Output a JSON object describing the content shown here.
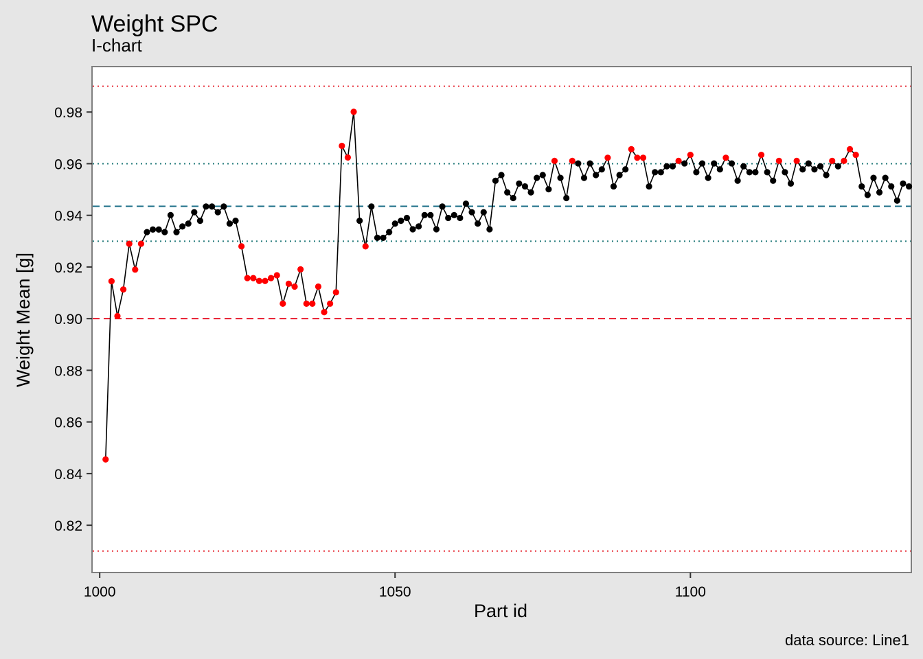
{
  "chart_data": {
    "type": "line",
    "title": "Weight SPC",
    "subtitle": "I-chart",
    "xlabel": "Part id",
    "ylabel": "Weight Mean [g]",
    "caption": "data source: Line1",
    "xlim": [
      998.7,
      1137.4
    ],
    "ylim": [
      0.8017,
      0.9976
    ],
    "x_ticks": [
      1000,
      1050,
      1100
    ],
    "x_tick_labels": [
      "1000",
      "1050",
      "1100"
    ],
    "y_ticks": [
      0.82,
      0.84,
      0.86,
      0.88,
      0.9,
      0.92,
      0.94,
      0.96,
      0.98
    ],
    "y_tick_labels": [
      "0.82",
      "0.84",
      "0.86",
      "0.88",
      "0.90",
      "0.92",
      "0.94",
      "0.96",
      "0.98"
    ],
    "grid": false,
    "reference_lines": [
      {
        "value": 0.99,
        "style": "dotted",
        "color": "#e8323c"
      },
      {
        "value": 0.96,
        "style": "dotted",
        "color": "#227a7a"
      },
      {
        "value": 0.9435,
        "style": "dashed",
        "color": "#1a6e87"
      },
      {
        "value": 0.93,
        "style": "dotted",
        "color": "#227a7a"
      },
      {
        "value": 0.9,
        "style": "dashed",
        "color": "#e8192c"
      },
      {
        "value": 0.81,
        "style": "dotted",
        "color": "#e8323c"
      }
    ],
    "colors": {
      "line": "#000000",
      "normal": "#000000",
      "flagged": "#ff0000"
    },
    "series": [
      {
        "x_start": 1001,
        "values": [
          0.8455,
          0.9145,
          0.901,
          0.9113,
          0.929,
          0.919,
          0.929,
          0.9335,
          0.9345,
          0.9345,
          0.9335,
          0.9401,
          0.9335,
          0.9357,
          0.9368,
          0.9412,
          0.9379,
          0.9434,
          0.9434,
          0.9412,
          0.9434,
          0.9368,
          0.9379,
          0.928,
          0.9157,
          0.9157,
          0.9146,
          0.9146,
          0.9157,
          0.9168,
          0.9058,
          0.9135,
          0.9124,
          0.9191,
          0.9058,
          0.9058,
          0.9124,
          0.9025,
          0.9058,
          0.9102,
          0.9669,
          0.9624,
          0.9801,
          0.9379,
          0.928,
          0.9434,
          0.9313,
          0.9313,
          0.9335,
          0.9368,
          0.9379,
          0.939,
          0.9346,
          0.9357,
          0.9401,
          0.9401,
          0.9346,
          0.9434,
          0.939,
          0.9401,
          0.939,
          0.9445,
          0.9412,
          0.9368,
          0.9412,
          0.9346,
          0.9534,
          0.9556,
          0.9489,
          0.9467,
          0.9523,
          0.9512,
          0.9489,
          0.9545,
          0.9556,
          0.9501,
          0.9611,
          0.9545,
          0.9467,
          0.9611,
          0.9601,
          0.9545,
          0.9601,
          0.9556,
          0.9578,
          0.9623,
          0.9512,
          0.9556,
          0.9578,
          0.9656,
          0.9623,
          0.9623,
          0.9512,
          0.9567,
          0.9567,
          0.959,
          0.959,
          0.9611,
          0.9601,
          0.9634,
          0.9567,
          0.9601,
          0.9545,
          0.9601,
          0.9578,
          0.9623,
          0.9601,
          0.9534,
          0.959,
          0.9567,
          0.9567,
          0.9634,
          0.9567,
          0.9534,
          0.9611,
          0.9567,
          0.9523,
          0.9611,
          0.9578,
          0.9601,
          0.9578,
          0.959,
          0.9556,
          0.9611,
          0.959,
          0.9611,
          0.9656,
          0.9634,
          0.9512,
          0.9479,
          0.9545,
          0.9489,
          0.9545,
          0.9512,
          0.9457,
          0.9523,
          0.9512
        ],
        "flags": [
          1,
          1,
          1,
          1,
          1,
          1,
          1,
          0,
          0,
          0,
          0,
          0,
          0,
          0,
          0,
          0,
          0,
          0,
          0,
          0,
          0,
          0,
          0,
          1,
          1,
          1,
          1,
          1,
          1,
          1,
          1,
          1,
          1,
          1,
          1,
          1,
          1,
          1,
          1,
          1,
          1,
          1,
          1,
          0,
          1,
          0,
          0,
          0,
          0,
          0,
          0,
          0,
          0,
          0,
          0,
          0,
          0,
          0,
          0,
          0,
          0,
          0,
          0,
          0,
          0,
          0,
          0,
          0,
          0,
          0,
          0,
          0,
          0,
          0,
          0,
          0,
          1,
          0,
          0,
          1,
          0,
          0,
          0,
          0,
          0,
          1,
          0,
          0,
          0,
          1,
          1,
          1,
          0,
          0,
          0,
          0,
          0,
          1,
          0,
          1,
          0,
          0,
          0,
          0,
          0,
          1,
          0,
          0,
          0,
          0,
          0,
          1,
          0,
          0,
          1,
          0,
          0,
          1,
          0,
          0,
          0,
          0,
          0,
          1,
          0,
          1,
          1,
          1,
          0,
          0,
          0,
          0,
          0,
          0,
          0,
          0,
          0
        ]
      }
    ]
  }
}
